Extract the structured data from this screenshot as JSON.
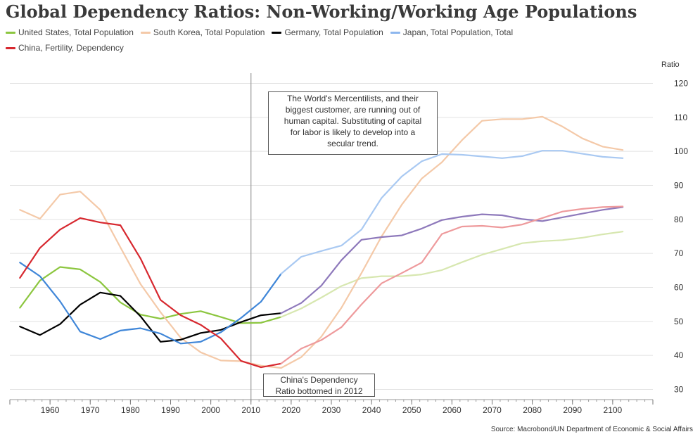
{
  "chart_data": {
    "type": "line",
    "title": "Global Dependency Ratios: Non-Working/Working Age Populations",
    "ylabel": "Ratio",
    "xlim": [
      1950,
      2110
    ],
    "ylim": [
      27,
      123
    ],
    "x_ticks": [
      1960,
      1970,
      1980,
      1990,
      2000,
      2010,
      2020,
      2030,
      2040,
      2050,
      2060,
      2070,
      2080,
      2090,
      2100
    ],
    "y_ticks": [
      30,
      40,
      50,
      60,
      70,
      80,
      90,
      100,
      110,
      120
    ],
    "grid": true,
    "legend_position": "top-left",
    "series": [
      {
        "name": "United States, Total Population",
        "color": "#8cc63f",
        "segments": [
          {
            "color": "#8cc63f",
            "x": [
              1952.5,
              1957.5,
              1962.5,
              1967.5,
              1972.5,
              1977.5,
              1982.5,
              1987.5,
              1992.5,
              1997.5,
              2002.5,
              2007.5,
              2012.5,
              2017.5
            ],
            "y": [
              54,
              62,
              66,
              65.3,
              61.6,
              55.6,
              52,
              50.8,
              52.2,
              53,
              51.3,
              49.5,
              49.6,
              51.3
            ]
          },
          {
            "color": "#d7e7b0",
            "x": [
              2017.5,
              2022.5,
              2027.5,
              2032.5,
              2037.5,
              2042.5,
              2047.5,
              2052.5,
              2057.5,
              2062.5,
              2067.5,
              2072.5,
              2077.5,
              2082.5,
              2087.5,
              2092.5,
              2097.5,
              2102.5
            ],
            "y": [
              51.3,
              53.8,
              57,
              60.4,
              62.7,
              63.3,
              63.3,
              63.8,
              65.1,
              67.4,
              69.6,
              71.3,
              73,
              73.6,
              73.9,
              74.6,
              75.6,
              76.4
            ]
          }
        ]
      },
      {
        "name": "South Korea, Total Population",
        "color": "#f4c9a8",
        "segments": [
          {
            "color": "#f4c9a8",
            "x": [
              1952.5,
              1957.5,
              1962.5,
              1967.5,
              1972.5,
              1977.5,
              1982.5,
              1987.5,
              1992.5,
              1997.5,
              2002.5,
              2007.5,
              2012.5,
              2017.5,
              2022.5,
              2027.5,
              2032.5,
              2037.5,
              2042.5,
              2047.5,
              2052.5,
              2057.5,
              2062.5,
              2067.5,
              2072.5,
              2077.5,
              2082.5,
              2087.5,
              2092.5,
              2097.5,
              2102.5
            ],
            "y": [
              82.8,
              80.2,
              87.3,
              88.2,
              82.8,
              71.8,
              61,
              52.7,
              45.2,
              40.9,
              38.5,
              38.3,
              37,
              36.3,
              39.5,
              45.5,
              54,
              64.2,
              75,
              84.3,
              92,
              96.8,
              103.3,
              109,
              109.5,
              109.5,
              110.2,
              107.3,
              103.8,
              101.4,
              100.4
            ]
          }
        ]
      },
      {
        "name": "Germany, Total Population",
        "color": "#000000",
        "segments": [
          {
            "color": "#000000",
            "x": [
              1952.5,
              1957.5,
              1962.5,
              1967.5,
              1972.5,
              1977.5,
              1982.5,
              1987.5,
              1992.5,
              1997.5,
              2002.5,
              2007.5,
              2012.5,
              2017.5
            ],
            "y": [
              48.5,
              46,
              49.2,
              54.9,
              58.5,
              57.5,
              51.5,
              44,
              44.6,
              46.6,
              47.5,
              49.8,
              51.8,
              52.4
            ]
          },
          {
            "color": "#8e79bb",
            "x": [
              2017.5,
              2022.5,
              2027.5,
              2032.5,
              2037.5,
              2042.5,
              2047.5,
              2052.5,
              2057.5,
              2062.5,
              2067.5,
              2072.5,
              2077.5,
              2082.5,
              2087.5,
              2092.5,
              2097.5,
              2102.5
            ],
            "y": [
              52.4,
              55.4,
              60.5,
              68,
              74,
              74.8,
              75.3,
              77.3,
              79.8,
              80.8,
              81.5,
              81.2,
              80.1,
              79.5,
              80.6,
              81.7,
              82.8,
              83.6
            ]
          }
        ]
      },
      {
        "name": "Japan, Total Population, Total",
        "color": "#8db7ee",
        "segments": [
          {
            "color": "#3f86d8",
            "x": [
              1952.5,
              1957.5,
              1962.5,
              1967.5,
              1972.5,
              1977.5,
              1982.5,
              1987.5,
              1992.5,
              1997.5,
              2002.5,
              2007.5,
              2012.5,
              2017.5
            ],
            "y": [
              67.3,
              63.3,
              55.9,
              47,
              44.8,
              47.3,
              48,
              46.4,
              43.5,
              44,
              46.8,
              51,
              55.8,
              64
            ]
          },
          {
            "color": "#a9c9f2",
            "x": [
              2017.5,
              2022.5,
              2027.5,
              2032.5,
              2037.5,
              2042.5,
              2047.5,
              2052.5,
              2057.5,
              2062.5,
              2067.5,
              2072.5,
              2077.5,
              2082.5,
              2087.5,
              2092.5,
              2097.5,
              2102.5
            ],
            "y": [
              64,
              69,
              70.7,
              72.3,
              77,
              86.3,
              92.6,
              97.1,
              99.2,
              99,
              98.5,
              98,
              98.6,
              100.2,
              100.2,
              99.3,
              98.4,
              98
            ]
          }
        ]
      },
      {
        "name": "China, Fertility, Dependency",
        "color": "#d7282f",
        "segments": [
          {
            "color": "#d7282f",
            "x": [
              1952.5,
              1957.5,
              1962.5,
              1967.5,
              1972.5,
              1977.5,
              1982.5,
              1987.5,
              1992.5,
              1997.5,
              2002.5,
              2007.5,
              2012.5,
              2017.5
            ],
            "y": [
              62.8,
              71.6,
              77,
              80.4,
              79.1,
              78.3,
              68.5,
              56.3,
              51.8,
              49,
              45,
              38.4,
              36.5,
              37.6
            ]
          },
          {
            "color": "#ee9a9c",
            "x": [
              2017.5,
              2022.5,
              2027.5,
              2032.5,
              2037.5,
              2042.5,
              2047.5,
              2052.5,
              2057.5,
              2062.5,
              2067.5,
              2072.5,
              2077.5,
              2082.5,
              2087.5,
              2092.5,
              2097.5,
              2102.5
            ],
            "y": [
              37.6,
              42,
              44.5,
              48.3,
              55,
              61.2,
              64.2,
              67.3,
              75.7,
              77.9,
              78.1,
              77.6,
              78.5,
              80.4,
              82.3,
              83.1,
              83.6,
              83.8
            ]
          }
        ]
      }
    ],
    "reference_line": {
      "x": 2010
    },
    "annotations": [
      "The World's Mercentilists, and their biggest customer, are running out of human capital.  Substituting of capital for labor is likely to develop into a secular trend.",
      "China's Dependency Ratio bottomed in 2012"
    ]
  },
  "annotation_main_lines": [
    "The World's Mercentilists, and their",
    "biggest customer, are running out of",
    "human capital.  Substituting of capital",
    "for labor is likely to develop into a",
    "secular trend."
  ],
  "annotation_bottom_lines": [
    "China's Dependency",
    "Ratio bottomed in 2012"
  ],
  "source": "Source: Macrobond/UN Department of Economic & Social Affairs"
}
